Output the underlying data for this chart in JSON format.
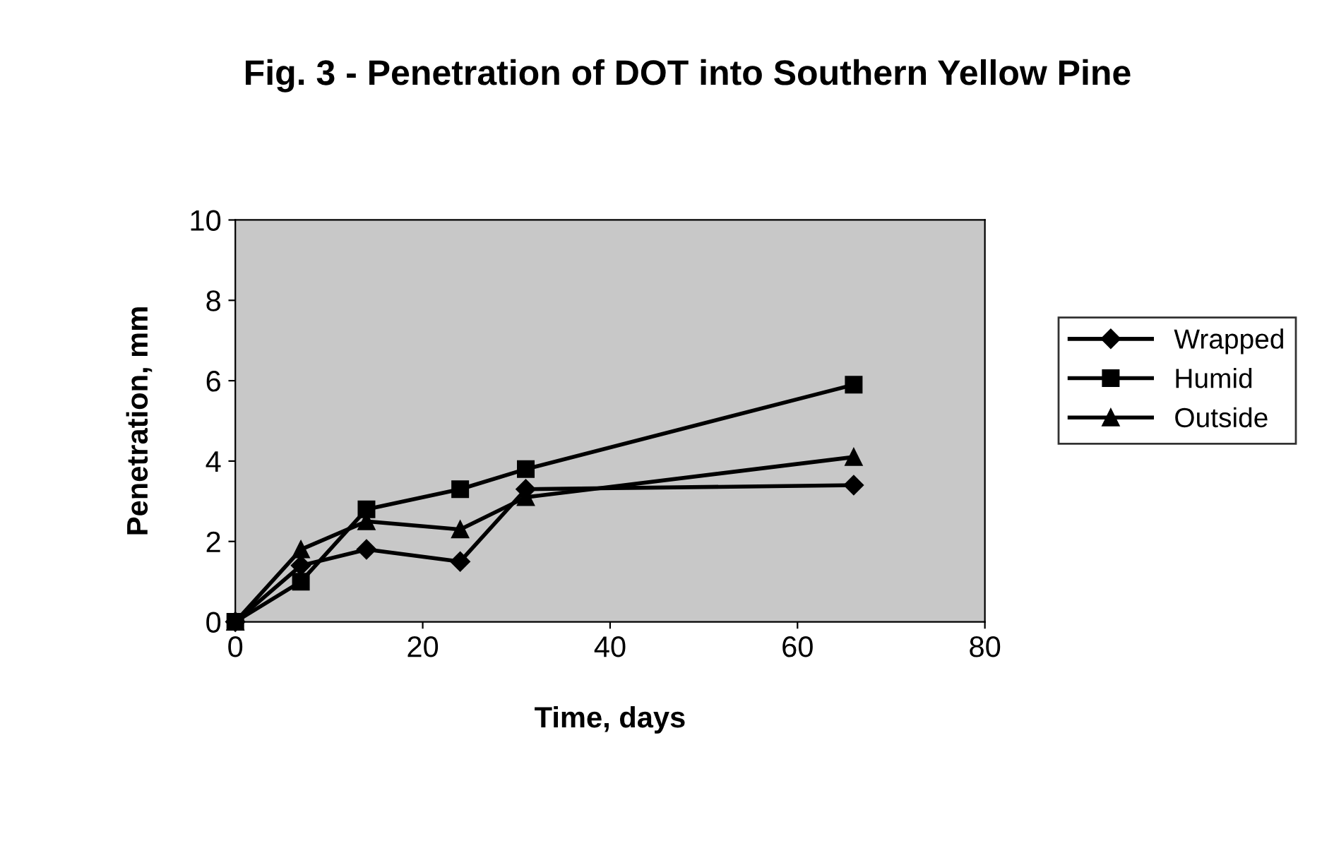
{
  "chart_data": {
    "type": "line",
    "title": "Fig. 3 - Penetration of DOT into Southern Yellow Pine",
    "xlabel": "Time, days",
    "ylabel": "Penetration, mm",
    "x": [
      0,
      7,
      14,
      24,
      31,
      66
    ],
    "series": [
      {
        "name": "Wrapped",
        "color": "#000000",
        "marker": "diamond",
        "values": [
          0,
          1.4,
          1.8,
          1.5,
          3.3,
          3.4
        ]
      },
      {
        "name": "Humid",
        "color": "#000000",
        "marker": "square",
        "values": [
          0,
          1.0,
          2.8,
          3.3,
          3.8,
          5.9
        ]
      },
      {
        "name": "Outside",
        "color": "#000000",
        "marker": "triangle",
        "values": [
          0,
          1.8,
          2.5,
          2.3,
          3.1,
          4.1
        ]
      }
    ],
    "xlim": [
      0,
      80
    ],
    "xticks": [
      0,
      20,
      40,
      60,
      80
    ],
    "ylim": [
      0,
      10
    ],
    "yticks": [
      0,
      2,
      4,
      6,
      8,
      10
    ],
    "grid": false,
    "legend": "right",
    "line_style": "solid"
  }
}
